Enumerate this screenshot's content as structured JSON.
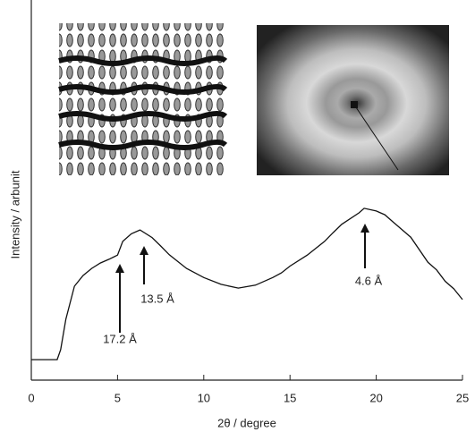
{
  "chart_data": {
    "type": "line",
    "x_label": "2θ / degree",
    "y_label": "Intensity / arbunit",
    "x": [
      0,
      1.5,
      1.7,
      2,
      2.5,
      3,
      3.5,
      4,
      4.5,
      5,
      5.3,
      5.8,
      6.3,
      7,
      7.5,
      8,
      9,
      10,
      11,
      12,
      13,
      14,
      14.5,
      15,
      16,
      17,
      17.5,
      18,
      19,
      19.3,
      20,
      20.5,
      21,
      22,
      23,
      23.5,
      24,
      24.5,
      25
    ],
    "values": [
      5.4,
      5.4,
      8,
      16,
      24.7,
      27.5,
      29.4,
      30.8,
      31.8,
      32.9,
      36.5,
      38.5,
      39.5,
      37.5,
      35.3,
      33,
      29.4,
      27,
      25.2,
      24.2,
      25,
      27,
      28.2,
      30,
      32.9,
      36.5,
      38.8,
      41,
      44,
      45.2,
      44.5,
      43.5,
      41.5,
      37.6,
      31,
      29,
      26,
      24,
      21.2
    ],
    "color": "#111111",
    "xlim": [
      0,
      25
    ],
    "xticks": [
      0,
      5,
      10,
      15,
      20,
      25
    ],
    "ylim": [
      0,
      100
    ],
    "annotations": [
      "17.2 Å",
      "13.5 Å",
      "4.6 Å"
    ]
  }
}
